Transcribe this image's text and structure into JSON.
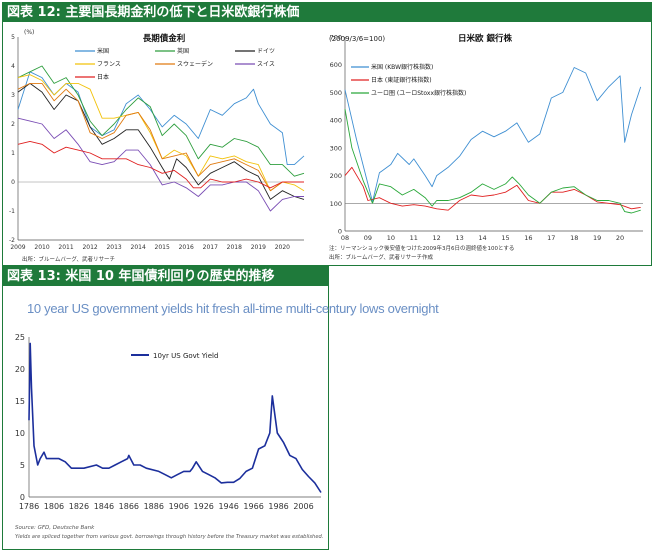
{
  "fig12": {
    "banner": "図表 12: 主要国長期金利の低下と日米欧銀行株価",
    "left_chart": {
      "title": "長期債金利",
      "unit": "(%)",
      "source": "出所：ブルームバーグ、武者リサーチ"
    },
    "right_chart": {
      "title": "日米欧 銀行株",
      "unit": "(2009/3/6=100)",
      "note1": "注：リーマンショック後安値をつけた2009年3月6日の週終値を100とする",
      "note2": "出所：ブルームバーグ、武者リサーチ作成"
    }
  },
  "fig13": {
    "banner": "図表 13: 米国 10 年国債利回りの歴史的推移",
    "subtitle": "10 year US government yields hit fresh all-time multi-century lows overnight",
    "source": "Source: GFD, Deutsche Bank",
    "footnote": "Yields are spliced together from various govt. borrowings through history before the Treasury market was established."
  },
  "colors": {
    "banner_green": "#1f7a3b",
    "us": "#3f8fd2",
    "uk": "#2e9e3e",
    "germany": "#222222",
    "france": "#f2c20b",
    "sweden": "#e07a10",
    "swiss": "#7a4db4",
    "japan": "#e02020",
    "eurozone": "#2aa83a",
    "us_yield": "#1c2f9c"
  },
  "chart_data": [
    {
      "type": "line",
      "title": "長期債金利",
      "ylabel": "(%)",
      "x_ticks": [
        "2009",
        "2010",
        "2011",
        "2012",
        "2013",
        "2014",
        "2015",
        "2016",
        "2017",
        "2018",
        "2019",
        "2020"
      ],
      "y_ticks": [
        "5",
        "4",
        "3",
        "2",
        "1",
        "0",
        "-1",
        "-2"
      ],
      "ylim": [
        -2,
        5
      ],
      "xlim": [
        2009.0,
        2020.9
      ],
      "grid": false,
      "legend": "top",
      "series": [
        {
          "name": "米国",
          "color_key": "us",
          "x": [
            2009.0,
            2009.5,
            2010.0,
            2010.5,
            2011.0,
            2011.5,
            2012.0,
            2012.5,
            2013.0,
            2013.5,
            2014.0,
            2014.5,
            2015.0,
            2015.5,
            2016.0,
            2016.5,
            2017.0,
            2017.5,
            2018.0,
            2018.5,
            2018.8,
            2019.0,
            2019.5,
            2020.0,
            2020.2,
            2020.5,
            2020.9
          ],
          "values": [
            2.5,
            3.8,
            3.6,
            3.0,
            3.4,
            3.1,
            1.9,
            1.6,
            1.8,
            2.7,
            3.0,
            2.5,
            1.9,
            2.3,
            2.0,
            1.5,
            2.5,
            2.3,
            2.7,
            2.9,
            3.2,
            2.7,
            2.0,
            1.7,
            0.6,
            0.6,
            0.9
          ]
        },
        {
          "name": "英国",
          "color_key": "uk",
          "x": [
            2009.0,
            2009.5,
            2010.0,
            2010.5,
            2011.0,
            2011.5,
            2012.0,
            2012.5,
            2013.0,
            2013.5,
            2014.0,
            2014.5,
            2015.0,
            2015.5,
            2016.0,
            2016.5,
            2017.0,
            2017.5,
            2018.0,
            2018.5,
            2019.0,
            2019.5,
            2020.0,
            2020.5,
            2020.9
          ],
          "values": [
            3.6,
            3.8,
            4.0,
            3.4,
            3.6,
            3.0,
            2.1,
            1.6,
            2.0,
            2.5,
            2.9,
            2.6,
            1.6,
            2.0,
            1.6,
            0.8,
            1.3,
            1.2,
            1.5,
            1.4,
            1.2,
            0.6,
            0.6,
            0.2,
            0.3
          ]
        },
        {
          "name": "ドイツ",
          "color_key": "germany",
          "x": [
            2009.0,
            2009.5,
            2010.0,
            2010.5,
            2011.0,
            2011.5,
            2012.0,
            2012.5,
            2013.0,
            2013.5,
            2014.0,
            2014.5,
            2015.0,
            2015.3,
            2015.6,
            2016.0,
            2016.5,
            2017.0,
            2017.5,
            2018.0,
            2018.5,
            2019.0,
            2019.5,
            2020.0,
            2020.5,
            2020.9
          ],
          "values": [
            3.1,
            3.4,
            3.1,
            2.5,
            3.0,
            2.8,
            1.9,
            1.3,
            1.5,
            1.8,
            1.8,
            1.2,
            0.5,
            0.1,
            0.8,
            0.5,
            -0.1,
            0.3,
            0.5,
            0.7,
            0.4,
            0.2,
            -0.6,
            -0.3,
            -0.5,
            -0.6
          ]
        },
        {
          "name": "フランス",
          "color_key": "france",
          "x": [
            2009.0,
            2009.5,
            2010.0,
            2010.5,
            2011.0,
            2011.5,
            2012.0,
            2012.5,
            2013.0,
            2013.5,
            2014.0,
            2014.5,
            2015.0,
            2015.5,
            2016.0,
            2016.5,
            2017.0,
            2017.5,
            2018.0,
            2018.5,
            2019.0,
            2019.5,
            2020.0,
            2020.5,
            2020.9
          ],
          "values": [
            3.6,
            3.7,
            3.5,
            3.0,
            3.4,
            3.4,
            3.2,
            2.2,
            2.2,
            2.3,
            2.4,
            1.7,
            0.8,
            1.1,
            0.9,
            0.2,
            0.9,
            0.8,
            0.9,
            0.7,
            0.6,
            -0.3,
            0.0,
            -0.1,
            -0.3
          ]
        },
        {
          "name": "スウェーデン",
          "color_key": "sweden",
          "x": [
            2009.0,
            2009.5,
            2010.0,
            2010.5,
            2011.0,
            2011.5,
            2012.0,
            2012.5,
            2013.0,
            2013.5,
            2014.0,
            2014.5,
            2015.0,
            2015.5,
            2016.0,
            2016.5,
            2017.0,
            2017.5,
            2018.0,
            2018.5,
            2019.0,
            2019.5,
            2020.0,
            2020.5,
            2020.9
          ],
          "values": [
            3.2,
            3.4,
            3.4,
            2.8,
            3.2,
            2.8,
            1.7,
            1.5,
            1.7,
            2.3,
            2.4,
            1.8,
            0.8,
            0.9,
            1.0,
            0.2,
            0.6,
            0.7,
            0.8,
            0.6,
            0.4,
            -0.3,
            0.0,
            0.0,
            0.0
          ]
        },
        {
          "name": "スイス",
          "color_key": "swiss",
          "x": [
            2009.0,
            2009.5,
            2010.0,
            2010.5,
            2011.0,
            2011.5,
            2012.0,
            2012.5,
            2013.0,
            2013.5,
            2014.0,
            2014.5,
            2015.0,
            2015.5,
            2016.0,
            2016.5,
            2017.0,
            2017.5,
            2018.0,
            2018.5,
            2019.0,
            2019.5,
            2020.0,
            2020.5,
            2020.9
          ],
          "values": [
            2.2,
            2.1,
            2.0,
            1.5,
            1.8,
            1.3,
            0.7,
            0.6,
            0.7,
            1.1,
            1.1,
            0.6,
            -0.1,
            0.0,
            -0.2,
            -0.5,
            -0.1,
            -0.1,
            0.0,
            0.0,
            -0.3,
            -1.0,
            -0.6,
            -0.5,
            -0.5
          ]
        },
        {
          "name": "日本",
          "color_key": "japan",
          "x": [
            2009.0,
            2009.5,
            2010.0,
            2010.5,
            2011.0,
            2011.5,
            2012.0,
            2012.5,
            2013.0,
            2013.5,
            2014.0,
            2014.5,
            2015.0,
            2015.5,
            2016.0,
            2016.3,
            2016.6,
            2017.0,
            2017.5,
            2018.0,
            2018.5,
            2019.0,
            2019.5,
            2020.0,
            2020.5,
            2020.9
          ],
          "values": [
            1.3,
            1.4,
            1.3,
            1.0,
            1.2,
            1.1,
            1.0,
            0.8,
            0.8,
            0.8,
            0.6,
            0.5,
            0.3,
            0.4,
            0.1,
            -0.2,
            -0.2,
            0.1,
            0.0,
            0.0,
            0.1,
            0.0,
            -0.2,
            0.0,
            0.0,
            0.0
          ]
        }
      ]
    },
    {
      "type": "line",
      "title": "日米欧 銀行株",
      "ylabel": "(2009/3/6=100)",
      "x_ticks": [
        "08",
        "09",
        "10",
        "11",
        "12",
        "13",
        "14",
        "15",
        "16",
        "17",
        "18",
        "19",
        "20"
      ],
      "y_ticks": [
        "700",
        "600",
        "500",
        "400",
        "300",
        "200",
        "100",
        "0"
      ],
      "ylim": [
        0,
        700
      ],
      "xlim": [
        2008.0,
        2021.0
      ],
      "grid": false,
      "legend": "top-left",
      "series": [
        {
          "name": "米国 (KBW銀行株指数)",
          "color_key": "us",
          "x": [
            2008.0,
            2008.5,
            2009.0,
            2009.2,
            2009.5,
            2010.0,
            2010.3,
            2010.8,
            2011.0,
            2011.5,
            2011.8,
            2012.0,
            2012.5,
            2013.0,
            2013.5,
            2014.0,
            2014.5,
            2015.0,
            2015.5,
            2016.0,
            2016.5,
            2017.0,
            2017.5,
            2018.0,
            2018.5,
            2019.0,
            2019.5,
            2020.0,
            2020.2,
            2020.5,
            2020.9
          ],
          "values": [
            510,
            330,
            170,
            105,
            210,
            240,
            280,
            240,
            260,
            200,
            160,
            200,
            230,
            270,
            330,
            360,
            340,
            360,
            390,
            320,
            350,
            480,
            500,
            590,
            570,
            470,
            520,
            560,
            320,
            420,
            520
          ]
        },
        {
          "name": "日本 (東証銀行株指数)",
          "color_key": "japan",
          "x": [
            2008.0,
            2008.3,
            2008.8,
            2009.0,
            2009.5,
            2010.0,
            2010.5,
            2011.0,
            2011.5,
            2012.0,
            2012.5,
            2013.0,
            2013.5,
            2014.0,
            2014.5,
            2015.0,
            2015.5,
            2016.0,
            2016.5,
            2017.0,
            2017.5,
            2018.0,
            2018.5,
            2019.0,
            2019.5,
            2020.0,
            2020.5,
            2020.9
          ],
          "values": [
            200,
            230,
            160,
            110,
            120,
            100,
            90,
            95,
            90,
            80,
            75,
            110,
            130,
            125,
            130,
            140,
            165,
            110,
            100,
            140,
            140,
            150,
            130,
            105,
            100,
            95,
            80,
            85
          ]
        },
        {
          "name": "ユーロ圏 (ユーロStoxx銀行株指数)",
          "color_key": "eurozone",
          "x": [
            2008.0,
            2008.3,
            2008.8,
            2009.2,
            2009.5,
            2010.0,
            2010.5,
            2011.0,
            2011.5,
            2011.8,
            2012.0,
            2012.5,
            2013.0,
            2013.5,
            2014.0,
            2014.5,
            2015.0,
            2015.3,
            2015.6,
            2016.0,
            2016.5,
            2017.0,
            2017.5,
            2018.0,
            2018.5,
            2019.0,
            2019.5,
            2020.0,
            2020.2,
            2020.5,
            2020.9
          ],
          "values": [
            440,
            300,
            180,
            100,
            170,
            160,
            130,
            150,
            120,
            90,
            110,
            110,
            120,
            140,
            170,
            150,
            170,
            195,
            170,
            130,
            100,
            140,
            155,
            160,
            130,
            110,
            110,
            100,
            70,
            65,
            75
          ]
        }
      ]
    },
    {
      "type": "line",
      "title": "",
      "legend_label": "10yr US Govt Yield",
      "x_ticks": [
        "1786",
        "1806",
        "1826",
        "1846",
        "1866",
        "1886",
        "1906",
        "1926",
        "1946",
        "1966",
        "1986",
        "2006"
      ],
      "y_ticks": [
        "25",
        "20",
        "15",
        "10",
        "5",
        "0"
      ],
      "ylim": [
        0,
        25
      ],
      "xlim": [
        1786,
        2020
      ],
      "grid": false,
      "legend": "top-center",
      "series": [
        {
          "name": "10yr US Govt Yield",
          "color_key": "us_yield",
          "x": [
            1786,
            1787,
            1788,
            1790,
            1793,
            1795,
            1798,
            1800,
            1805,
            1810,
            1815,
            1820,
            1825,
            1830,
            1840,
            1845,
            1850,
            1855,
            1860,
            1865,
            1866,
            1870,
            1875,
            1880,
            1890,
            1895,
            1900,
            1905,
            1910,
            1915,
            1917,
            1920,
            1925,
            1930,
            1935,
            1940,
            1945,
            1950,
            1955,
            1960,
            1965,
            1970,
            1975,
            1979,
            1981,
            1985,
            1990,
            1995,
            2000,
            2005,
            2010,
            2015,
            2020
          ],
          "values": [
            12,
            24,
            17,
            8,
            5,
            6,
            7,
            6,
            6,
            6,
            5.5,
            4.5,
            4.5,
            4.5,
            5,
            4.5,
            4.5,
            5,
            5.5,
            6,
            6.5,
            5,
            5,
            4.5,
            4,
            3.5,
            3,
            3.5,
            4,
            4,
            4.5,
            5.5,
            4,
            3.5,
            3,
            2.2,
            2.3,
            2.3,
            2.9,
            4.0,
            4.5,
            7.5,
            8,
            10,
            15.8,
            10,
            8.5,
            6.5,
            6,
            4.3,
            3.2,
            2.2,
            0.7
          ]
        }
      ]
    }
  ]
}
